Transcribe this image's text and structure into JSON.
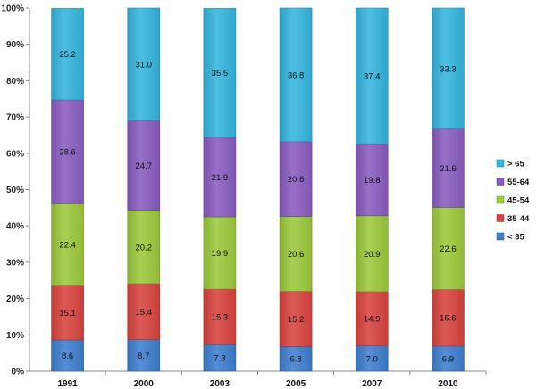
{
  "chart_data": {
    "type": "bar",
    "stacked": true,
    "percent": true,
    "categories": [
      "1991",
      "2000",
      "2003",
      "2005",
      "2007",
      "2010"
    ],
    "series": [
      {
        "name": "< 35",
        "color": "#3f7fd0",
        "values": [
          8.6,
          8.7,
          7.3,
          6.8,
          7.0,
          6.9
        ]
      },
      {
        "name": "35-44",
        "color": "#d9443f",
        "values": [
          15.1,
          15.4,
          15.3,
          15.2,
          14.9,
          15.6
        ]
      },
      {
        "name": "45-54",
        "color": "#9cca3c",
        "values": [
          22.4,
          20.2,
          19.9,
          20.6,
          20.9,
          22.6
        ]
      },
      {
        "name": "55-64",
        "color": "#8a5cc0",
        "values": [
          28.6,
          24.7,
          21.9,
          20.6,
          19.8,
          21.6
        ]
      },
      {
        "name": "> 65",
        "color": "#35b6df",
        "values": [
          25.2,
          31.0,
          35.5,
          36.8,
          37.4,
          33.3
        ]
      }
    ],
    "labels": [
      [
        "8.6",
        "8.7",
        "7.3",
        "6.8",
        "7.0",
        "6.9"
      ],
      [
        "15.1",
        "15.4",
        "15.3",
        "15.2",
        "14.9",
        "15.6"
      ],
      [
        "22.4",
        "20.2",
        "19.9",
        "20.6",
        "20.9",
        "22.6"
      ],
      [
        "28.6",
        "24.7",
        "21.9",
        "20.6",
        "19.8",
        "21.6"
      ],
      [
        "25.2",
        "31.0",
        "35.5",
        "36.8",
        "37.4",
        "33.3"
      ]
    ],
    "y_ticks": [
      "0%",
      "10%",
      "20%",
      "30%",
      "40%",
      "50%",
      "60%",
      "70%",
      "80%",
      "90%",
      "100%"
    ],
    "ylim": [
      0,
      100
    ],
    "grid": false,
    "legend_position": "right",
    "title": "",
    "xlabel": "",
    "ylabel": ""
  }
}
